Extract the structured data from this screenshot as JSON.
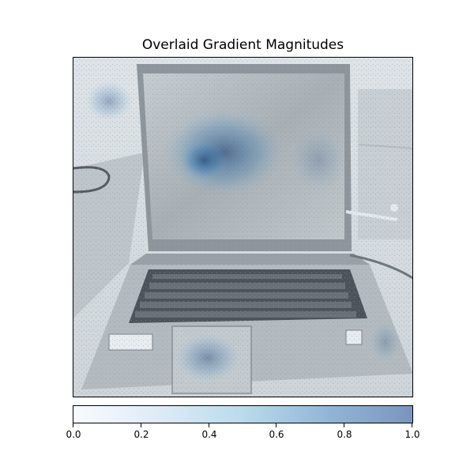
{
  "figure": {
    "title": "Overlaid Gradient Magnitudes"
  },
  "overlay": {
    "colormap": "Blues",
    "alpha": 0.5
  },
  "colorbar": {
    "min": 0.0,
    "max": 1.0,
    "tick_labels": [
      "0.0",
      "0.2",
      "0.4",
      "0.6",
      "0.8",
      "1.0"
    ],
    "color_low": "#f7fbff",
    "color_high": "#08306b"
  }
}
